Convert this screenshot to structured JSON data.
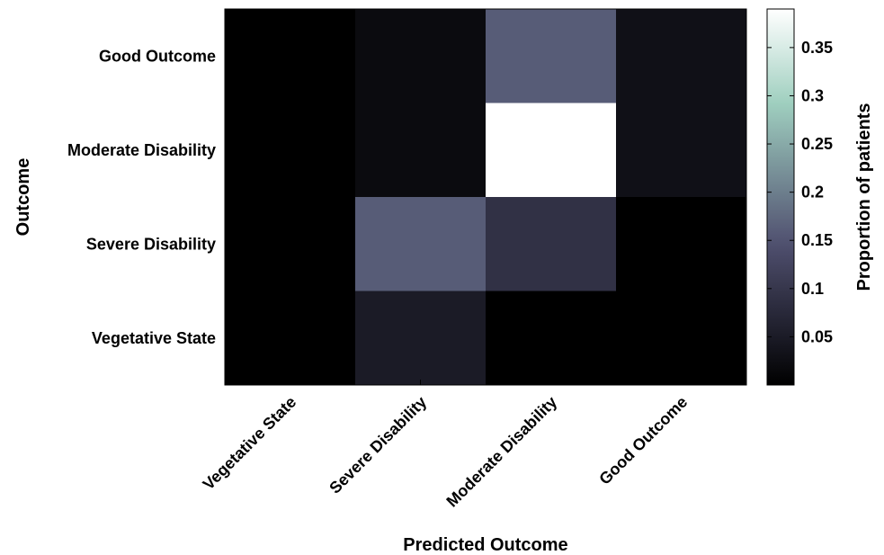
{
  "chart_data": {
    "type": "heatmap",
    "title": "",
    "xlabel": "Predicted Outcome",
    "ylabel": "Outcome",
    "x_categories": [
      "Vegetative State",
      "Severe Disability",
      "Moderate Disability",
      "Good Outcome"
    ],
    "y_categories": [
      "Good Outcome",
      "Moderate Disability",
      "Severe Disability",
      "Vegetative State"
    ],
    "values": [
      [
        0.0,
        0.02,
        0.16,
        0.03
      ],
      [
        0.0,
        0.02,
        0.39,
        0.03
      ],
      [
        0.0,
        0.16,
        0.09,
        0.0
      ],
      [
        0.0,
        0.05,
        0.0,
        0.0
      ]
    ],
    "colorbar": {
      "label": "Proportion of patients",
      "range": [
        0,
        0.39
      ],
      "ticks": [
        0.05,
        0.1,
        0.15,
        0.2,
        0.25,
        0.3,
        0.35
      ],
      "tick_labels": [
        "0.05",
        "0.1",
        "0.15",
        "0.2",
        "0.25",
        "0.3",
        "0.35"
      ],
      "colormap": "bone"
    }
  }
}
